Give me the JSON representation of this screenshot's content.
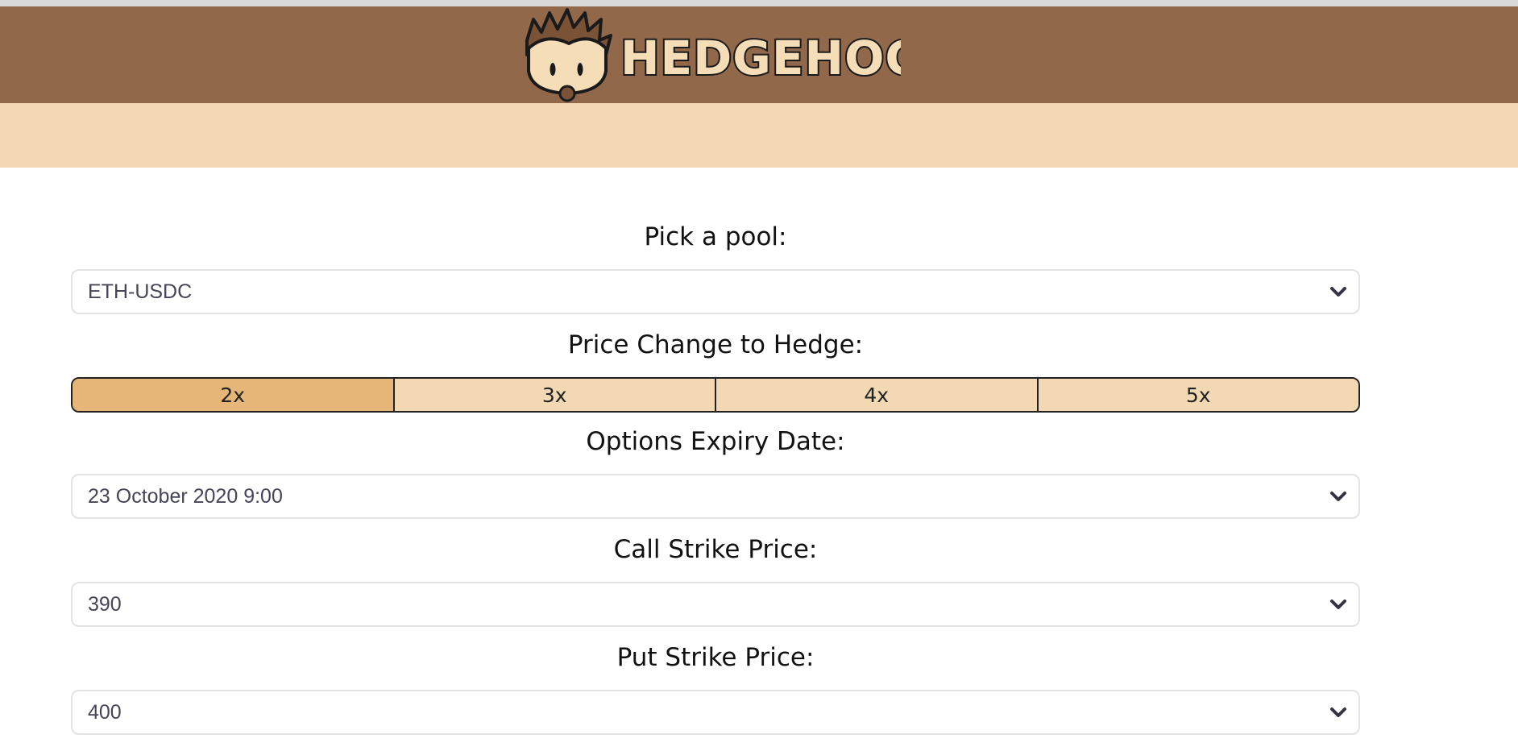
{
  "brand": {
    "name": "HEDGEHOG"
  },
  "colors": {
    "header_bg": "#91684a",
    "subbar_bg": "#f2d9b4",
    "segment_active": "#e5b677",
    "segment_inactive": "#f2d9b4"
  },
  "form": {
    "pool": {
      "label": "Pick a pool:",
      "selected": "ETH-USDC"
    },
    "price_change": {
      "label": "Price Change to Hedge:",
      "options": [
        "2x",
        "3x",
        "4x",
        "5x"
      ],
      "selected": "2x"
    },
    "expiry": {
      "label": "Options Expiry Date:",
      "selected": "23 October 2020 9:00"
    },
    "call_strike": {
      "label": "Call Strike Price:",
      "selected": "390"
    },
    "put_strike": {
      "label": "Put Strike Price:",
      "selected": "400"
    }
  }
}
